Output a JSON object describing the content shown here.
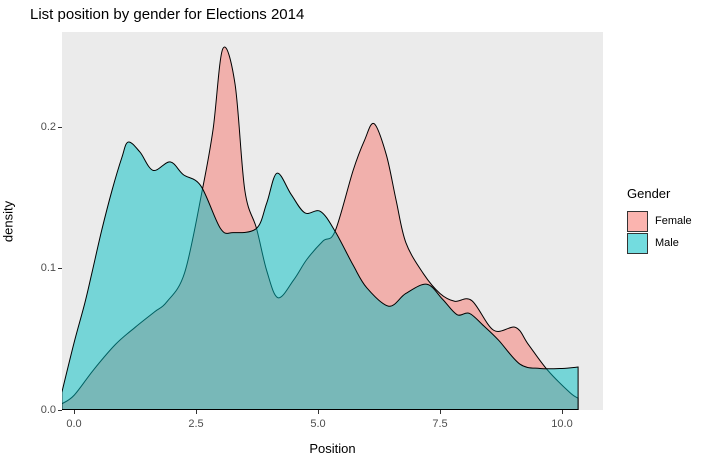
{
  "title": "List position by gender for Elections 2014",
  "x_axis": {
    "title": "Position",
    "ticks": [
      "0.0",
      "2.5",
      "5.0",
      "7.5",
      "10.0"
    ],
    "tick_values": [
      0,
      2.5,
      5,
      7.5,
      10
    ]
  },
  "y_axis": {
    "title": "density",
    "ticks": [
      "0.0",
      "0.1",
      "0.2"
    ],
    "tick_values": [
      0,
      0.1,
      0.2
    ]
  },
  "legend": {
    "title": "Gender",
    "items": [
      {
        "label": "Female",
        "color": "#F8766D"
      },
      {
        "label": "Male",
        "color": "#00BFC4"
      }
    ]
  },
  "colors": {
    "panel_background": "#EBEBEB",
    "outer_background": "#FFFFFF",
    "outline": "#000000",
    "tick_text": "#4D4D4D",
    "female_fill": "#F8766D",
    "male_fill": "#00BFC4",
    "fill_alpha": 0.5
  },
  "chart_data": {
    "type": "area",
    "subtype": "density",
    "title": "List position by gender for Elections 2014",
    "xlabel": "Position",
    "ylabel": "density",
    "xlim": [
      -0.28,
      11.08
    ],
    "ylim": [
      0,
      0.267
    ],
    "grid": false,
    "legend_position": "right",
    "series": [
      {
        "name": "Female",
        "fill": "#F8766D",
        "points": [
          [
            -0.25,
            0.004
          ],
          [
            0.0,
            0.01
          ],
          [
            0.4,
            0.028
          ],
          [
            0.85,
            0.046
          ],
          [
            1.25,
            0.058
          ],
          [
            1.65,
            0.069
          ],
          [
            1.9,
            0.076
          ],
          [
            2.27,
            0.097
          ],
          [
            2.64,
            0.157
          ],
          [
            2.85,
            0.198
          ],
          [
            3.05,
            0.255
          ],
          [
            3.3,
            0.23
          ],
          [
            3.5,
            0.155
          ],
          [
            3.74,
            0.128
          ],
          [
            3.95,
            0.098
          ],
          [
            4.18,
            0.079
          ],
          [
            4.5,
            0.0915
          ],
          [
            4.77,
            0.106
          ],
          [
            5.1,
            0.119
          ],
          [
            5.35,
            0.126
          ],
          [
            5.72,
            0.169
          ],
          [
            5.95,
            0.19
          ],
          [
            6.15,
            0.202
          ],
          [
            6.4,
            0.18
          ],
          [
            6.6,
            0.148
          ],
          [
            6.8,
            0.118
          ],
          [
            7.16,
            0.096
          ],
          [
            7.5,
            0.082
          ],
          [
            7.8,
            0.0765
          ],
          [
            8.15,
            0.077
          ],
          [
            8.6,
            0.056
          ],
          [
            9.05,
            0.058
          ],
          [
            9.31,
            0.046
          ],
          [
            9.7,
            0.028
          ],
          [
            10.16,
            0.012
          ],
          [
            10.33,
            0.008
          ]
        ]
      },
      {
        "name": "Male",
        "fill": "#00BFC4",
        "points": [
          [
            -0.25,
            0.012
          ],
          [
            0.0,
            0.047
          ],
          [
            0.22,
            0.075
          ],
          [
            0.37,
            0.097
          ],
          [
            0.57,
            0.127
          ],
          [
            0.78,
            0.155
          ],
          [
            0.98,
            0.178
          ],
          [
            1.11,
            0.189
          ],
          [
            1.35,
            0.182
          ],
          [
            1.62,
            0.169
          ],
          [
            1.97,
            0.175
          ],
          [
            2.24,
            0.166
          ],
          [
            2.6,
            0.158
          ],
          [
            3.0,
            0.128
          ],
          [
            3.26,
            0.125
          ],
          [
            3.74,
            0.128
          ],
          [
            3.95,
            0.146
          ],
          [
            4.16,
            0.167
          ],
          [
            4.45,
            0.152
          ],
          [
            4.73,
            0.139
          ],
          [
            5.05,
            0.14
          ],
          [
            5.35,
            0.126
          ],
          [
            5.72,
            0.102
          ],
          [
            6.0,
            0.086
          ],
          [
            6.45,
            0.073
          ],
          [
            6.8,
            0.082
          ],
          [
            7.23,
            0.0885
          ],
          [
            7.55,
            0.078
          ],
          [
            7.85,
            0.067
          ],
          [
            8.1,
            0.068
          ],
          [
            8.4,
            0.059
          ],
          [
            8.7,
            0.049
          ],
          [
            9.14,
            0.032
          ],
          [
            9.55,
            0.029
          ],
          [
            10.0,
            0.029
          ],
          [
            10.33,
            0.03
          ]
        ]
      }
    ]
  }
}
